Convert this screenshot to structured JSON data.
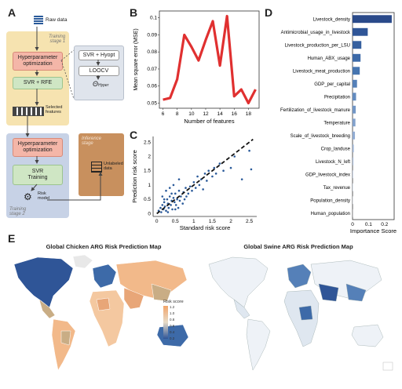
{
  "panels": {
    "a": "A",
    "b": "B",
    "c": "C",
    "d": "D",
    "e": "E"
  },
  "flow": {
    "raw_data": "Raw data",
    "training_stage_1": "Training\nstage 1",
    "hyperparameter_opt_1": "Hyperparameter\noptimization",
    "svr_rfe": "SVR + RFE",
    "selected_features": "Selected\nfeatures",
    "svr_hyopt": "SVR + Hyopt",
    "loocv": "LOOCV",
    "theta_hyper": "Θ",
    "theta_sub": "Hyper",
    "hyperparameter_opt_2": "Hyperparameter\noptimization",
    "svr_training": "SVR\nTraining",
    "risk_model": "Risk\nmodel",
    "training_stage_2": "Training\nstage 2",
    "inference_stage": "Inference\nstage",
    "unlabeled_data": "Unlabeled\ndata"
  },
  "chart_b": {
    "type": "line",
    "x": [
      6,
      7,
      8,
      9,
      10,
      11,
      12,
      13,
      14,
      15,
      16,
      17,
      18,
      19
    ],
    "values": [
      0.052,
      0.053,
      0.064,
      0.09,
      0.083,
      0.075,
      0.087,
      0.098,
      0.072,
      0.101,
      0.054,
      0.058,
      0.05,
      0.058
    ],
    "xticks": [
      "6",
      "8",
      "10",
      "12",
      "14",
      "16",
      "18"
    ],
    "yticks": [
      "0.05",
      "0.06",
      "0.07",
      "0.08",
      "0.09",
      "0.1"
    ],
    "xlabel": "Number of features",
    "ylabel": "Mean square error (MSE)",
    "xlim": [
      5.5,
      19.5
    ],
    "ylim": [
      0.047,
      0.104
    ],
    "color": "#e03030"
  },
  "chart_c": {
    "type": "scatter",
    "points": [
      [
        0.05,
        0.1
      ],
      [
        0.1,
        0.2
      ],
      [
        0.12,
        0.05
      ],
      [
        0.15,
        0.3
      ],
      [
        0.18,
        0.15
      ],
      [
        0.2,
        0.4
      ],
      [
        0.22,
        0.25
      ],
      [
        0.25,
        0.1
      ],
      [
        0.28,
        0.5
      ],
      [
        0.3,
        0.35
      ],
      [
        0.32,
        0.2
      ],
      [
        0.35,
        0.6
      ],
      [
        0.38,
        0.3
      ],
      [
        0.4,
        0.45
      ],
      [
        0.42,
        0.15
      ],
      [
        0.45,
        0.55
      ],
      [
        0.48,
        0.4
      ],
      [
        0.5,
        0.7
      ],
      [
        0.52,
        0.3
      ],
      [
        0.55,
        0.5
      ],
      [
        0.58,
        0.2
      ],
      [
        0.6,
        0.8
      ],
      [
        0.62,
        0.45
      ],
      [
        0.65,
        0.6
      ],
      [
        0.7,
        0.35
      ],
      [
        0.72,
        0.75
      ],
      [
        0.75,
        0.5
      ],
      [
        0.78,
        0.9
      ],
      [
        0.8,
        0.6
      ],
      [
        0.85,
        0.7
      ],
      [
        0.9,
        0.95
      ],
      [
        0.95,
        0.8
      ],
      [
        1.0,
        1.1
      ],
      [
        1.05,
        0.9
      ],
      [
        1.1,
        1.3
      ],
      [
        1.15,
        1.0
      ],
      [
        1.2,
        1.2
      ],
      [
        1.3,
        1.4
      ],
      [
        1.35,
        1.15
      ],
      [
        1.4,
        1.5
      ],
      [
        1.5,
        1.3
      ],
      [
        1.55,
        1.6
      ],
      [
        1.6,
        1.4
      ],
      [
        1.7,
        1.75
      ],
      [
        1.8,
        1.5
      ],
      [
        2.0,
        1.6
      ],
      [
        2.1,
        2.0
      ],
      [
        2.3,
        1.2
      ],
      [
        2.5,
        2.2
      ],
      [
        2.55,
        1.55
      ],
      [
        0.15,
        0.6
      ],
      [
        0.25,
        0.8
      ],
      [
        0.35,
        0.9
      ],
      [
        0.45,
        1.0
      ],
      [
        0.6,
        1.2
      ],
      [
        0.3,
        0.05
      ],
      [
        0.5,
        0.15
      ],
      [
        0.4,
        0.7
      ],
      [
        0.2,
        0.5
      ],
      [
        1.25,
        0.85
      ]
    ],
    "xticks": [
      "0",
      "0.5",
      "1",
      "1.5",
      "2",
      "2.5"
    ],
    "yticks": [
      "0",
      "0.5",
      "1",
      "1.5",
      "2",
      "2.5"
    ],
    "xlabel": "Standard risk score",
    "ylabel": "Prediction risk score",
    "xlim": [
      -0.1,
      2.7
    ],
    "ylim": [
      -0.1,
      2.7
    ],
    "color": "#2a5a9a"
  },
  "chart_d": {
    "type": "bar",
    "categories": [
      "Livestock_density",
      "Antimicrobial_usage_in_livestock",
      "Livestock_production_per_LSU",
      "Human_ABX_usage",
      "Livestock_meat_production",
      "GDP_per_capital",
      "Precipitation",
      "Fertilization_of_livestock_manure",
      "Temperature",
      "Scale_of_livestock_breeding",
      "Crop_landuse",
      "Livestock_N_left",
      "GDP_livestock_index",
      "Tax_revenue",
      "Population_density",
      "Human_population"
    ],
    "values": [
      0.245,
      0.095,
      0.055,
      0.05,
      0.045,
      0.028,
      0.022,
      0.02,
      0.018,
      0.015,
      0.008,
      0.006,
      0.004,
      0.003,
      0.002,
      0.001
    ],
    "xticks": [
      "0",
      "0.1",
      "0.2"
    ],
    "xlabel": "Importance Score",
    "xlim": [
      0,
      0.26
    ],
    "colors": [
      "#2a4a8a",
      "#2f5597",
      "#36609f",
      "#3d6aa8",
      "#4675b0",
      "#5580b8",
      "#638bbf",
      "#7296c6",
      "#82a1cc",
      "#91acd3",
      "#a2b8d9",
      "#b2c4df",
      "#c2d0e6",
      "#d0dbec",
      "#dde5f1",
      "#e8eef6"
    ]
  },
  "maps": {
    "chicken_title": "Global Chicken ARG Risk Prediction Map",
    "swine_title": "Global Swine ARG Risk Prediction Map",
    "legend_title": "Risk score",
    "legend_ticks": [
      "1.2",
      "1.0",
      "0.8",
      "0.6",
      "0.4",
      "0.2"
    ]
  }
}
